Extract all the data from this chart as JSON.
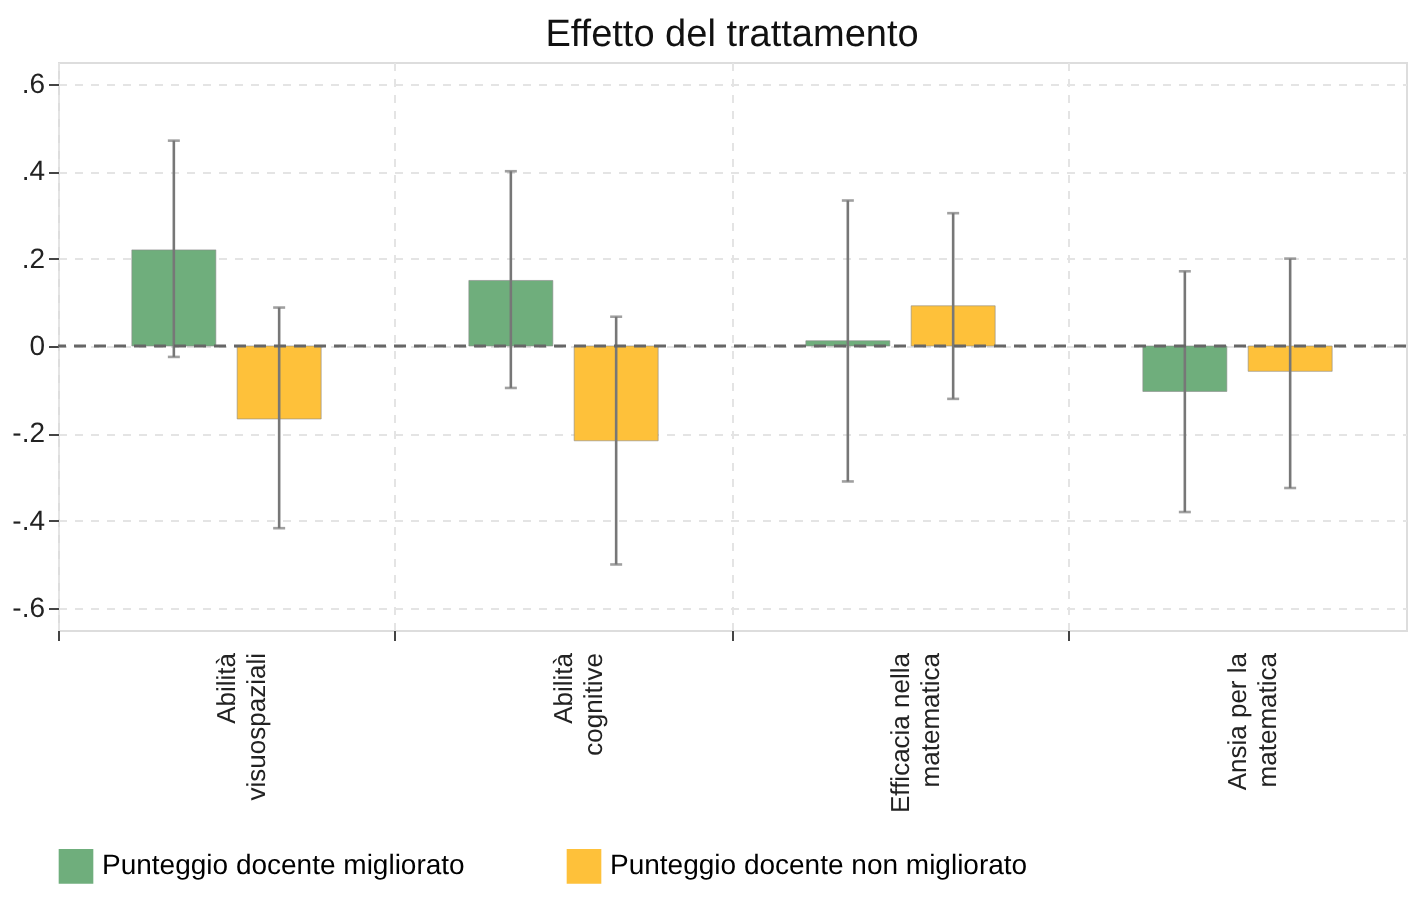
{
  "chart_data": {
    "type": "bar",
    "title": "Effetto del trattamento",
    "categories": [
      "Abilità\nvisuospaziali",
      "Abilità\ncognitive",
      "Efficacia nella\nmatematica",
      "Ansia per la\nmatematica"
    ],
    "series": [
      {
        "name": "Punteggio docente migliorato",
        "color": "#6fae7c",
        "values": [
          0.22,
          0.15,
          0.012,
          -0.104
        ],
        "errors": [
          [
            -0.025,
            0.47
          ],
          [
            -0.096,
            0.4
          ],
          [
            -0.31,
            0.333
          ],
          [
            -0.38,
            0.171
          ]
        ]
      },
      {
        "name": "Punteggio docente non migliorato",
        "color": "#fec13a",
        "values": [
          -0.167,
          -0.217,
          0.092,
          -0.058
        ],
        "errors": [
          [
            -0.417,
            0.088
          ],
          [
            -0.5,
            0.067
          ],
          [
            -0.121,
            0.304
          ],
          [
            -0.325,
            0.2
          ]
        ]
      }
    ],
    "ylim": [
      -0.65,
      0.65
    ],
    "yticks": [
      {
        "value": -0.6,
        "label": "-.6"
      },
      {
        "value": -0.4,
        "label": "-.4"
      },
      {
        "value": -0.2,
        "label": "-.2"
      },
      0,
      {
        "value": 0.2,
        "label": ".2"
      },
      {
        "value": 0.4,
        "label": ".4"
      },
      {
        "value": 0.6,
        "label": ".6"
      }
    ],
    "ref_lines": [
      {
        "axis": "y",
        "value": 0,
        "label": null,
        "color": "#666666",
        "line_style": "dashed"
      }
    ],
    "grid": true,
    "legend": "bottom"
  }
}
